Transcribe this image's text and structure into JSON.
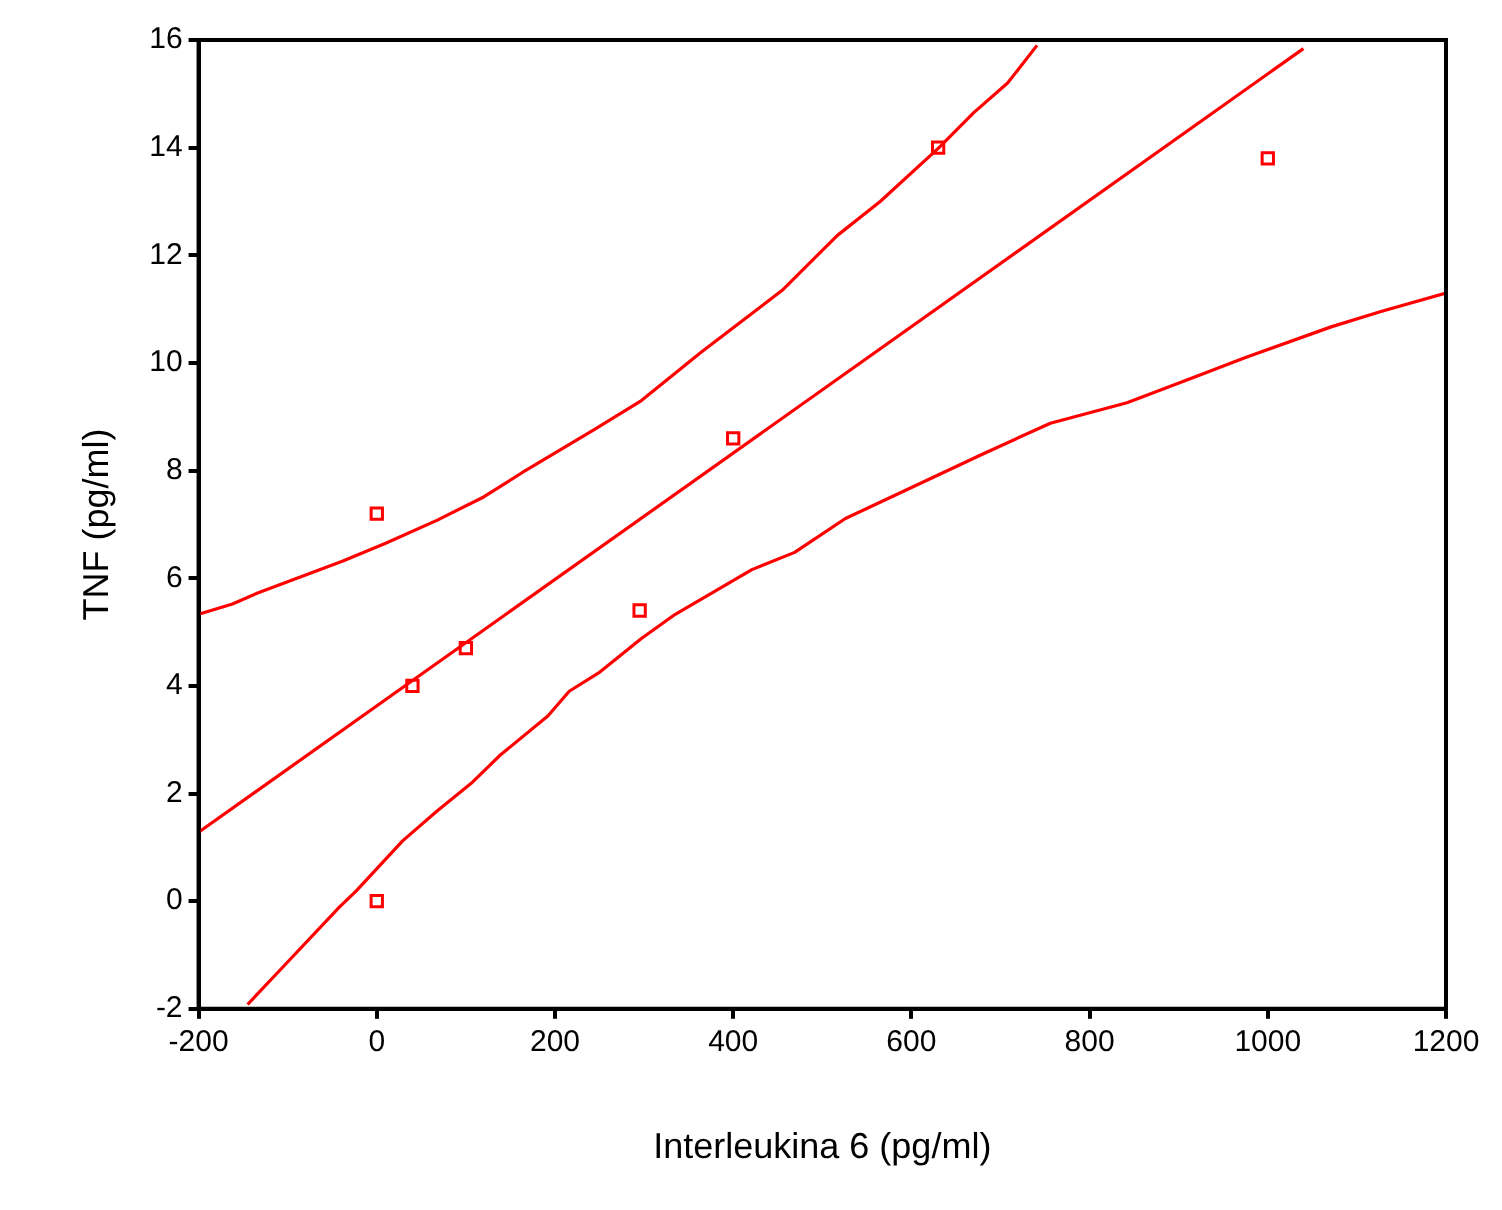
{
  "chart_data": {
    "type": "scatter",
    "xlabel": "Interleukina 6 (pg/ml)",
    "ylabel": "TNF (pg/ml)",
    "xlim": [
      -200,
      1200
    ],
    "xticks": [
      -200,
      0,
      200,
      400,
      600,
      800,
      1000,
      1200
    ],
    "ylim": [
      -2,
      16
    ],
    "yticks": [
      -2,
      0,
      2,
      4,
      6,
      8,
      10,
      12,
      14,
      16
    ],
    "grid": false,
    "legend": false,
    "series": [
      {
        "type": "scatter",
        "color": "#ff0000",
        "marker": "square",
        "x": [
          0,
          40,
          100,
          0,
          295,
          400,
          630,
          1000
        ],
        "values": [
          7.2,
          4.0,
          4.7,
          0,
          5.4,
          8.6,
          14.0,
          13.8
        ]
      },
      {
        "type": "line",
        "color": "#ff0000",
        "marker": "none",
        "line_style": "solid",
        "x": [
          -200,
          1040
        ],
        "values": [
          1.28,
          15.84
        ]
      },
      {
        "type": "line",
        "color": "#ff0000",
        "marker": "none",
        "line_style": "solid",
        "x": [
          -200,
          -162,
          -133,
          -38,
          10,
          68,
          120,
          163,
          244,
          297,
          364,
          455,
          517,
          565,
          631,
          670,
          708,
          741
        ],
        "values": [
          5.33,
          5.52,
          5.73,
          6.32,
          6.65,
          7.08,
          7.51,
          7.96,
          8.76,
          9.3,
          10.2,
          11.35,
          12.37,
          13.0,
          14.0,
          14.65,
          15.2,
          15.9
        ]
      },
      {
        "type": "line",
        "color": "#ff0000",
        "marker": "none",
        "line_style": "solid",
        "x": [
          -145,
          -104,
          -42,
          -23,
          29,
          68,
          106,
          139,
          192,
          216,
          249,
          297,
          335,
          421,
          469,
          526,
          584,
          679,
          756,
          842,
          918,
          975,
          1071,
          1128,
          1200
        ],
        "values": [
          -1.92,
          -1.2,
          -0.11,
          0.19,
          1.12,
          1.68,
          2.19,
          2.72,
          3.44,
          3.9,
          4.24,
          4.88,
          5.33,
          6.16,
          6.48,
          7.11,
          7.56,
          8.3,
          8.88,
          9.26,
          9.74,
          10.1,
          10.67,
          10.96,
          11.3
        ]
      }
    ]
  }
}
